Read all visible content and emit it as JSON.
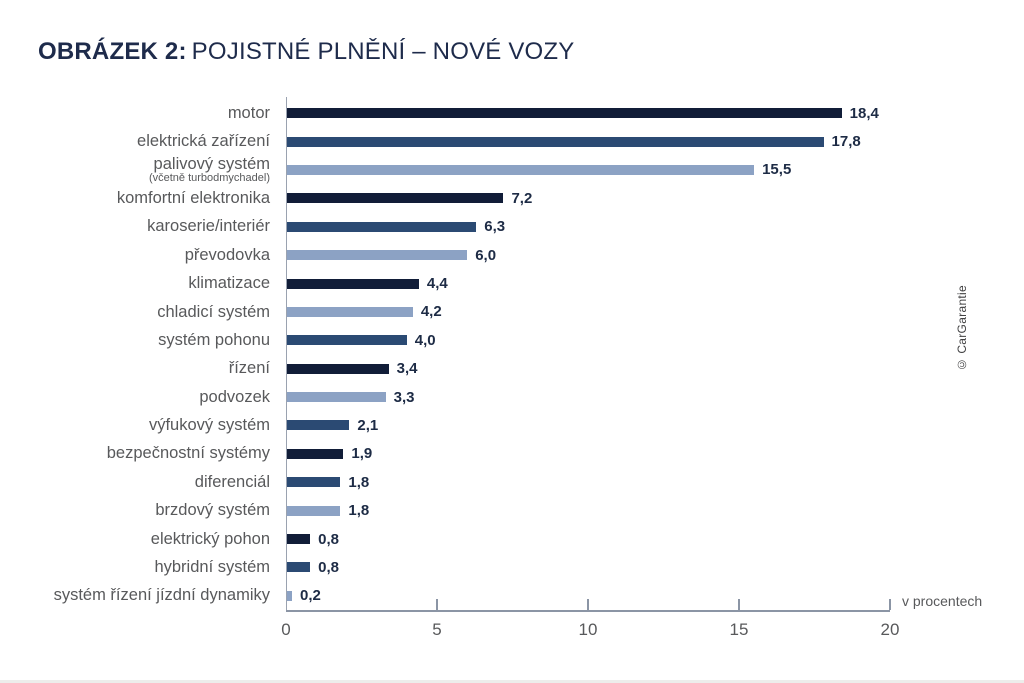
{
  "title": {
    "prefix": "OBRÁZEK 2:",
    "text": "POJISTNÉ PLNĚNÍ – NOVÉ VOZY"
  },
  "credit": "© CarGarantie",
  "colors": {
    "dark": "#111d38",
    "medium": "#2b4a73",
    "light": "#8ca2c4",
    "title": "#1e2b4b",
    "label": "#58595b",
    "value": "#1d2b45",
    "axis": "#8b95a5"
  },
  "chart_data": {
    "type": "bar",
    "orientation": "horizontal",
    "title": "OBRÁZEK 2: POJISTNÉ PLNĚNÍ – NOVÉ VOZY",
    "xlabel": "v procentech",
    "xlim": [
      0,
      20
    ],
    "xticks": [
      0,
      5,
      10,
      15,
      20
    ],
    "grid": false,
    "legend": "none",
    "items": [
      {
        "label": "motor",
        "value": 18.4,
        "display": "18,4",
        "color": "dark"
      },
      {
        "label": "elektrická zařízení",
        "value": 17.8,
        "display": "17,8",
        "color": "medium"
      },
      {
        "label": "palivový systém",
        "sublabel": "(včetně turbodmychadel)",
        "value": 15.5,
        "display": "15,5",
        "color": "light"
      },
      {
        "label": "komfortní elektronika",
        "value": 7.2,
        "display": "7,2",
        "color": "dark"
      },
      {
        "label": "karoserie/interiér",
        "value": 6.3,
        "display": "6,3",
        "color": "medium"
      },
      {
        "label": "převodovka",
        "value": 6.0,
        "display": "6,0",
        "color": "light"
      },
      {
        "label": "klimatizace",
        "value": 4.4,
        "display": "4,4",
        "color": "dark"
      },
      {
        "label": "chladicí systém",
        "value": 4.2,
        "display": "4,2",
        "color": "light"
      },
      {
        "label": "systém pohonu",
        "value": 4.0,
        "display": "4,0",
        "color": "medium"
      },
      {
        "label": "řízení",
        "value": 3.4,
        "display": "3,4",
        "color": "dark"
      },
      {
        "label": "podvozek",
        "value": 3.3,
        "display": "3,3",
        "color": "light"
      },
      {
        "label": "výfukový systém",
        "value": 2.1,
        "display": "2,1",
        "color": "medium"
      },
      {
        "label": "bezpečnostní systémy",
        "value": 1.9,
        "display": "1,9",
        "color": "dark"
      },
      {
        "label": "diferenciál",
        "value": 1.8,
        "display": "1,8",
        "color": "medium"
      },
      {
        "label": "brzdový systém",
        "value": 1.8,
        "display": "1,8",
        "color": "light"
      },
      {
        "label": "elektrický pohon",
        "value": 0.8,
        "display": "0,8",
        "color": "dark"
      },
      {
        "label": "hybridní systém",
        "value": 0.8,
        "display": "0,8",
        "color": "medium"
      },
      {
        "label": "systém řízení jízdní dynamiky",
        "value": 0.2,
        "display": "0,2",
        "color": "light"
      }
    ]
  }
}
